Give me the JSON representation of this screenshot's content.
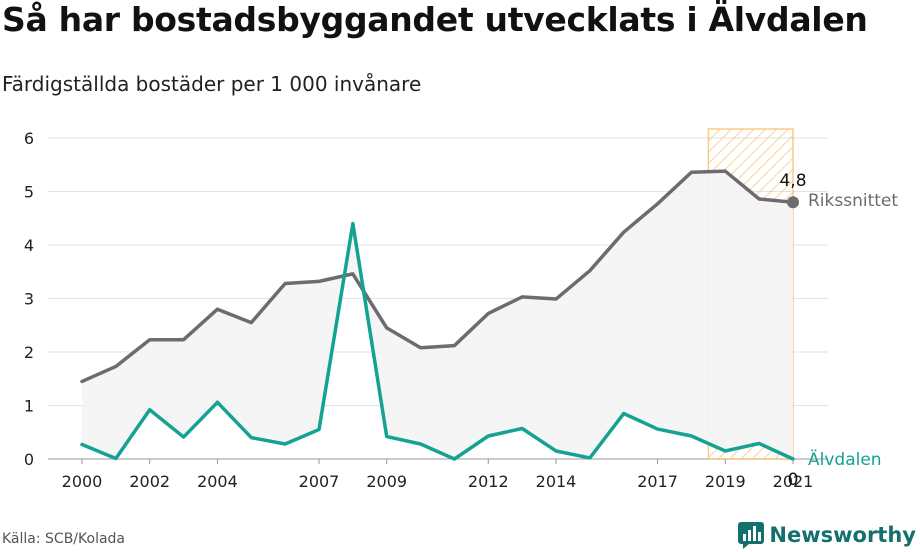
{
  "title": "Så har bostadsbyggandet utvecklats i Älvdalen",
  "subtitle": "Färdigställda bostäder per 1 000 invånare",
  "source": "Källa: SCB/Kolada",
  "brand": {
    "name": "Newsworthy",
    "icon": "newsworthy-logo-icon",
    "color": "#14706c"
  },
  "chart_data": {
    "type": "line",
    "x": [
      2000,
      2001,
      2002,
      2003,
      2004,
      2005,
      2006,
      2007,
      2008,
      2009,
      2010,
      2011,
      2012,
      2013,
      2014,
      2015,
      2016,
      2017,
      2018,
      2019,
      2020,
      2021
    ],
    "series": [
      {
        "name": "Rikssnittet",
        "color": "#6d6b70",
        "values": [
          1.45,
          1.73,
          2.23,
          2.23,
          2.8,
          2.55,
          3.28,
          3.32,
          3.46,
          2.45,
          2.08,
          2.12,
          2.72,
          3.03,
          2.99,
          3.52,
          4.24,
          4.77,
          5.36,
          5.38,
          4.86,
          4.8
        ],
        "end_value_label": "4,8"
      },
      {
        "name": "Älvdalen",
        "color": "#14a292",
        "values": [
          0.27,
          0.01,
          0.92,
          0.41,
          1.06,
          0.4,
          0.28,
          0.55,
          4.4,
          0.42,
          0.28,
          0.0,
          0.43,
          0.57,
          0.15,
          0.02,
          0.85,
          0.56,
          0.43,
          0.15,
          0.29,
          0.0
        ],
        "end_value_label": "0"
      }
    ],
    "x_ticks": [
      "2000",
      "2002",
      "2004",
      "2007",
      "2009",
      "2012",
      "2014",
      "2017",
      "2019",
      "2021"
    ],
    "y_ticks": [
      "0",
      "1",
      "2",
      "3",
      "4",
      "5",
      "6"
    ],
    "ylim": [
      0,
      6
    ],
    "xlim": [
      2000,
      2021
    ],
    "highlight_period": {
      "from": 2018.5,
      "to": 2021,
      "color": "#f5c26b"
    },
    "shaded_area_between_series": true,
    "grid": "horizontal"
  }
}
